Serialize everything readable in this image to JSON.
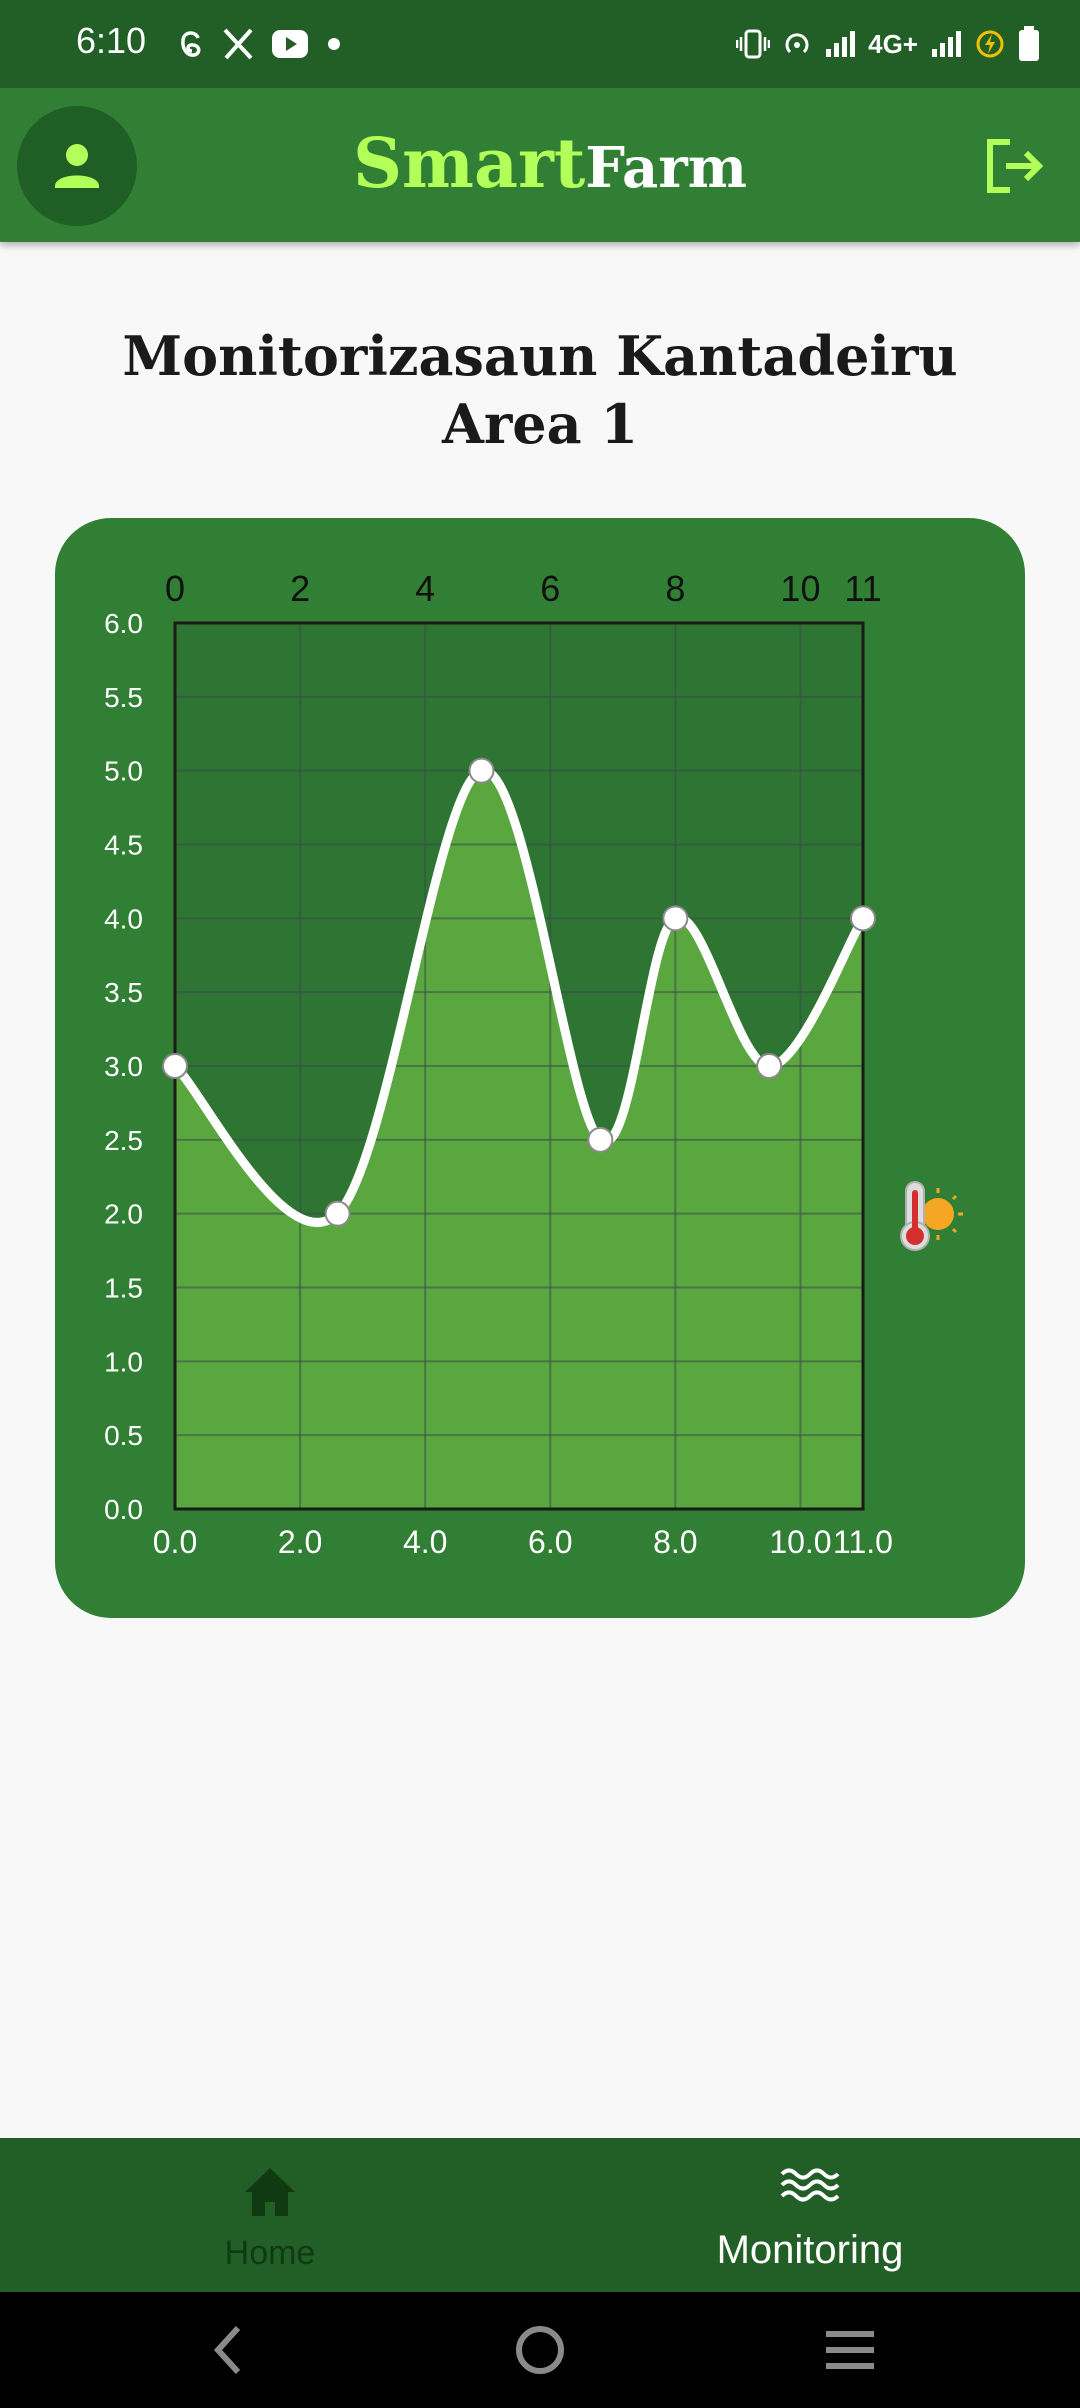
{
  "status_bar": {
    "time": "6:10",
    "left_icons": [
      "threads-icon",
      "x-icon",
      "youtube-icon",
      "dot-icon"
    ],
    "right_icons": [
      "vibrate-icon",
      "hotspot-icon",
      "signal-icon",
      "4g-icon",
      "signal-icon",
      "battery-saver-icon",
      "battery-icon"
    ],
    "network_label": "4G+"
  },
  "header": {
    "brand_part1": "Smart",
    "brand_part2": "Farm",
    "left_button_icon": "person-icon",
    "right_button_icon": "logout-icon"
  },
  "page": {
    "title_line1": "Monitorizasaun Kantadeiru",
    "title_line2": "Area 1"
  },
  "chart_data": {
    "type": "area",
    "x": [
      0,
      2.6,
      4.9,
      6.8,
      8,
      9.5,
      11
    ],
    "y": [
      3,
      2,
      5,
      2.5,
      4,
      3,
      4
    ],
    "xlim": [
      0,
      11
    ],
    "ylim": [
      0,
      6
    ],
    "top_ticks": [
      "0",
      "2",
      "4",
      "6",
      "8",
      "10",
      "11"
    ],
    "bottom_ticks": [
      "0.0",
      "2.0",
      "4.0",
      "6.0",
      "8.0",
      "10.0",
      "11.0"
    ],
    "y_ticks": [
      "0.0",
      "0.5",
      "1.0",
      "1.5",
      "2.0",
      "2.5",
      "3.0",
      "3.5",
      "4.0",
      "4.5",
      "5.0",
      "5.5",
      "6.0"
    ],
    "grid": true,
    "colors": {
      "card": "#307f34",
      "plot_bg": "#2e7432",
      "fill": "#5aa63f",
      "line": "#ffffff",
      "grid": "#3c4a4f"
    },
    "side_icon": "thermometer-sun-icon"
  },
  "bottom_nav": {
    "items": [
      {
        "label": "Home",
        "icon": "home-icon",
        "active": false
      },
      {
        "label": "Monitoring",
        "icon": "waves-icon",
        "active": true
      }
    ]
  },
  "system_nav": [
    "back-icon",
    "home-circle-icon",
    "menu-icon"
  ]
}
